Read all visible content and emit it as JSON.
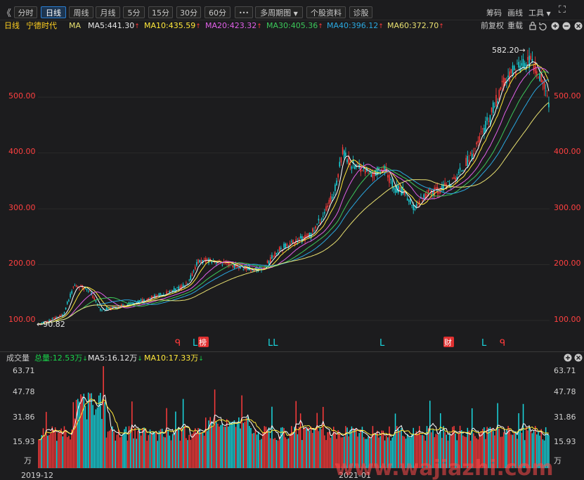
{
  "toolbar": {
    "collapse": "《",
    "tabs": [
      "分时",
      "日线",
      "周线",
      "月线",
      "5分",
      "15分",
      "30分",
      "60分",
      "•••"
    ],
    "active_tab": "日线",
    "multi_period": "多周期图",
    "multi_period_arrow": "▼",
    "stock_info": "个股资料",
    "diagnose": "诊股",
    "chips": "筹码",
    "draw_line": "画线",
    "tools": "工具",
    "tools_arrow": "▼",
    "expand_icon": "⛶"
  },
  "info": {
    "period": "日线",
    "stock_name": "宁德时代",
    "indicator": "MA",
    "ma5": "MA5:441.30",
    "ma10": "MA10:435.59",
    "ma20": "MA20:423.32",
    "ma30": "MA30:405.36",
    "ma40": "MA40:396.12",
    "ma60": "MA60:372.70",
    "up_arrow": "↑",
    "adjust": "前复权",
    "reload": "重载"
  },
  "colors": {
    "up": "#ff3b3b",
    "down": "#19d8e0",
    "ma5": "#ffffff",
    "ma10": "#ffe83a",
    "ma20": "#e060e8",
    "ma30": "#3cc85a",
    "ma40": "#2aa8e0",
    "ma60": "#e8e070"
  },
  "price_axis": {
    "labels": [
      "500.00",
      "400.00",
      "300.00",
      "200.00",
      "100.00"
    ],
    "values": [
      500,
      400,
      300,
      200,
      100
    ]
  },
  "annotations": {
    "high": "582.20→",
    "low": "←90.82",
    "high_value": 582.2,
    "low_value": 90.82
  },
  "events": [
    {
      "text": "ᑫ",
      "color": "#ff3b3b",
      "type": "plain"
    },
    {
      "text": "L",
      "color": "#19d8e0",
      "type": "plain"
    },
    {
      "text": "榜",
      "color": "#ffffff",
      "type": "badge"
    },
    {
      "text": "LL",
      "color": "#19d8e0",
      "type": "plain"
    },
    {
      "text": "L",
      "color": "#19d8e0",
      "type": "plain"
    },
    {
      "text": "财",
      "color": "#ffffff",
      "type": "badge"
    },
    {
      "text": "L",
      "color": "#19d8e0",
      "type": "plain"
    },
    {
      "text": "ᑫ",
      "color": "#ff3b3b",
      "type": "plain"
    }
  ],
  "volume": {
    "label": "成交量",
    "total": "总量:12.53万",
    "ma5": "MA5:16.12万",
    "ma10": "MA10:17.33万",
    "down_arrow": "↓",
    "axis_labels": [
      "63.71",
      "47.78",
      "31.86",
      "15.93",
      "万"
    ],
    "axis_values": [
      63.71,
      47.78,
      31.86,
      15.93
    ]
  },
  "dates": [
    "2019-12",
    "2021-01"
  ],
  "watermark": "www.wajiazhi.com"
}
